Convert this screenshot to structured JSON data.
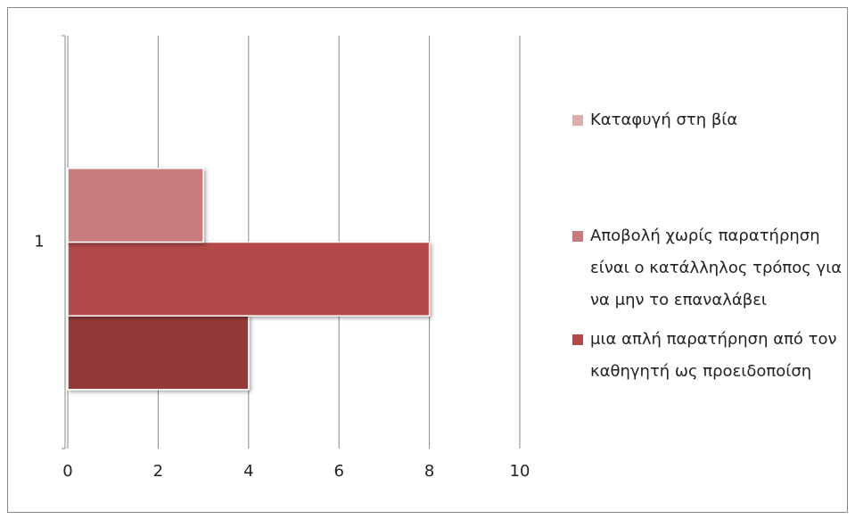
{
  "chart_data": {
    "type": "bar",
    "orientation": "horizontal",
    "categories": [
      "1"
    ],
    "series": [
      {
        "name": null,
        "color": "#943838",
        "values": [
          4
        ]
      },
      {
        "name": "μια απλή παρατήρηση από τον καθηγητή ως προειδοποίση",
        "color": "#b34a4a",
        "values": [
          8
        ]
      },
      {
        "name": "Αποβολή χωρίς παρατήρηση είναι ο κατάλληλος τρόπος για να μην το επαναλάβει",
        "color": "#c97b7b",
        "values": [
          3
        ]
      },
      {
        "name": "Καταφυγή στη βία",
        "color": "#dcaeae",
        "values": [
          0
        ]
      }
    ],
    "xlim": [
      0,
      10
    ],
    "xticks": [
      0,
      2,
      4,
      6,
      8,
      10
    ],
    "grid": true,
    "legend": "right"
  }
}
